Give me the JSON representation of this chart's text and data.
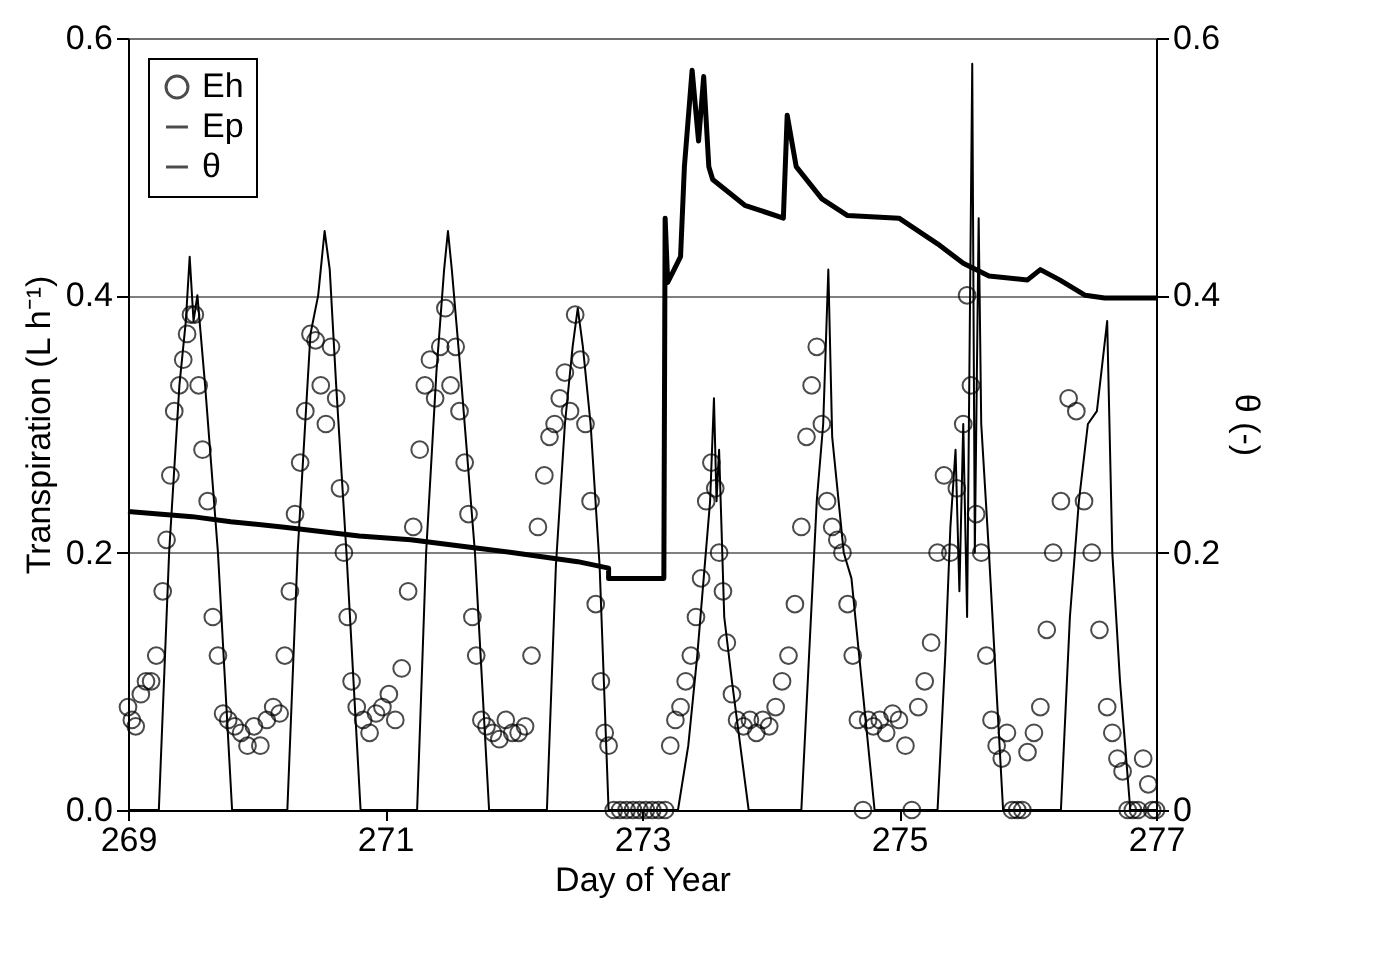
{
  "chart_data": {
    "type": "line",
    "xlabel": "Day of Year",
    "ylabel": "Transpiration (L h⁻¹)",
    "y2label": "θ (-)",
    "xlim": [
      269,
      277
    ],
    "xticks": [
      269,
      271,
      273,
      275,
      277
    ],
    "ylim": [
      0,
      0.6
    ],
    "yticks": [
      {
        "value": 0,
        "label": "0.0"
      },
      {
        "value": 0.2,
        "label": "0.2"
      },
      {
        "value": 0.4,
        "label": "0.4"
      },
      {
        "value": 0.6,
        "label": "0.6"
      }
    ],
    "y2lim": [
      0,
      0.6
    ],
    "y2ticks": [
      0,
      0.2,
      0.4,
      0.6
    ],
    "grid": "y",
    "legend": "top left",
    "series": [
      {
        "name": "Eh",
        "type": "scatter",
        "marker": "circle",
        "color": "#000000",
        "x": [
          269.0,
          269.03,
          269.06,
          269.1,
          269.14,
          269.18,
          269.22,
          269.27,
          269.3,
          269.33,
          269.36,
          269.4,
          269.43,
          269.46,
          269.49,
          269.52,
          269.55,
          269.58,
          269.62,
          269.66,
          269.7,
          269.74,
          269.78,
          269.83,
          269.88,
          269.93,
          269.98,
          270.03,
          270.08,
          270.13,
          270.18,
          270.22,
          270.26,
          270.3,
          270.34,
          270.38,
          270.42,
          270.46,
          270.5,
          270.54,
          270.58,
          270.62,
          270.65,
          270.68,
          270.71,
          270.74,
          270.78,
          270.83,
          270.88,
          270.93,
          270.98,
          271.03,
          271.08,
          271.13,
          271.18,
          271.22,
          271.27,
          271.31,
          271.35,
          271.39,
          271.43,
          271.47,
          271.51,
          271.55,
          271.58,
          271.62,
          271.65,
          271.68,
          271.71,
          271.75,
          271.79,
          271.84,
          271.89,
          271.94,
          271.99,
          272.04,
          272.09,
          272.14,
          272.19,
          272.24,
          272.28,
          272.32,
          272.36,
          272.4,
          272.44,
          272.48,
          272.52,
          272.56,
          272.6,
          272.64,
          272.68,
          272.71,
          272.74,
          272.78,
          272.83,
          272.88,
          272.93,
          272.98,
          273.03,
          273.08,
          273.13,
          273.18,
          273.22,
          273.26,
          273.3,
          273.34,
          273.38,
          273.42,
          273.46,
          273.5,
          273.54,
          273.57,
          273.6,
          273.63,
          273.66,
          273.7,
          273.74,
          273.79,
          273.84,
          273.89,
          273.94,
          273.99,
          274.04,
          274.09,
          274.14,
          274.19,
          274.24,
          274.28,
          274.32,
          274.36,
          274.4,
          274.44,
          274.48,
          274.52,
          274.56,
          274.6,
          274.64,
          274.68,
          274.72,
          274.76,
          274.8,
          274.85,
          274.9,
          274.95,
          275.0,
          275.05,
          275.1,
          275.15,
          275.2,
          275.25,
          275.3,
          275.35,
          275.4,
          275.45,
          275.5,
          275.53,
          275.56,
          275.6,
          275.64,
          275.68,
          275.72,
          275.76,
          275.8,
          275.84,
          275.88,
          275.92,
          275.96,
          276.0,
          276.05,
          276.1,
          276.15,
          276.2,
          276.26,
          276.32,
          276.38,
          276.44,
          276.5,
          276.56,
          276.62,
          276.66,
          276.7,
          276.74,
          276.78,
          276.82,
          276.86,
          276.9,
          276.94,
          276.97,
          277.0
        ],
        "values": [
          0.08,
          0.07,
          0.065,
          0.09,
          0.1,
          0.1,
          0.12,
          0.17,
          0.21,
          0.26,
          0.31,
          0.33,
          0.35,
          0.37,
          0.385,
          0.385,
          0.33,
          0.28,
          0.24,
          0.15,
          0.12,
          0.075,
          0.07,
          0.065,
          0.06,
          0.05,
          0.065,
          0.05,
          0.07,
          0.08,
          0.075,
          0.12,
          0.17,
          0.23,
          0.27,
          0.31,
          0.37,
          0.365,
          0.33,
          0.3,
          0.36,
          0.32,
          0.25,
          0.2,
          0.15,
          0.1,
          0.08,
          0.07,
          0.06,
          0.075,
          0.08,
          0.09,
          0.07,
          0.11,
          0.17,
          0.22,
          0.28,
          0.33,
          0.35,
          0.32,
          0.36,
          0.39,
          0.33,
          0.36,
          0.31,
          0.27,
          0.23,
          0.15,
          0.12,
          0.07,
          0.065,
          0.06,
          0.055,
          0.07,
          0.06,
          0.06,
          0.065,
          0.12,
          0.22,
          0.26,
          0.29,
          0.3,
          0.32,
          0.34,
          0.31,
          0.385,
          0.35,
          0.3,
          0.24,
          0.16,
          0.1,
          0.06,
          0.05,
          0,
          0,
          0,
          0,
          0,
          0,
          0,
          0,
          0,
          0.05,
          0.07,
          0.08,
          0.1,
          0.12,
          0.15,
          0.18,
          0.24,
          0.27,
          0.25,
          0.2,
          0.17,
          0.13,
          0.09,
          0.07,
          0.065,
          0.07,
          0.06,
          0.07,
          0.065,
          0.08,
          0.1,
          0.12,
          0.16,
          0.22,
          0.29,
          0.33,
          0.36,
          0.3,
          0.24,
          0.22,
          0.21,
          0.2,
          0.16,
          0.12,
          0.07,
          0,
          0.07,
          0.065,
          0.07,
          0.06,
          0.075,
          0.07,
          0.05,
          0,
          0.08,
          0.1,
          0.13,
          0.2,
          0.26,
          0.2,
          0.25,
          0.3,
          0.4,
          0.33,
          0.23,
          0.2,
          0.12,
          0.07,
          0.05,
          0.04,
          0.06,
          0,
          0,
          0,
          0.045,
          0.06,
          0.08,
          0.14,
          0.2,
          0.24,
          0.32,
          0.31,
          0.24,
          0.2,
          0.14,
          0.08,
          0.06,
          0.04,
          0.03,
          0,
          0,
          0,
          0.04,
          0.02,
          0,
          0
        ]
      },
      {
        "name": "Ep",
        "color": "#000000",
        "x": [
          269,
          269.24,
          269.32,
          269.4,
          269.45,
          269.48,
          269.51,
          269.54,
          269.6,
          269.7,
          269.81,
          270.24,
          270.32,
          270.42,
          270.48,
          270.53,
          270.57,
          270.62,
          270.7,
          270.81,
          271.25,
          271.32,
          271.4,
          271.46,
          271.49,
          271.52,
          271.58,
          271.7,
          271.81,
          272.26,
          272.33,
          272.4,
          272.46,
          272.5,
          272.54,
          272.6,
          272.67,
          272.74,
          273.28,
          273.36,
          273.43,
          273.48,
          273.53,
          273.56,
          273.58,
          273.6,
          273.64,
          273.7,
          273.83,
          274.24,
          274.3,
          274.36,
          274.41,
          274.45,
          274.48,
          274.53,
          274.57,
          274.63,
          274.71,
          274.81,
          275.3,
          275.36,
          275.4,
          275.44,
          275.47,
          275.5,
          275.53,
          275.57,
          275.59,
          275.62,
          275.64,
          275.7,
          275.81,
          276.26,
          276.33,
          276.4,
          276.47,
          276.54,
          276.62,
          276.66,
          276.72,
          276.8,
          277
        ],
        "values": [
          0,
          0,
          0.2,
          0.33,
          0.38,
          0.43,
          0.38,
          0.4,
          0.33,
          0.2,
          0,
          0,
          0.2,
          0.37,
          0.4,
          0.45,
          0.42,
          0.33,
          0.2,
          0,
          0,
          0.2,
          0.34,
          0.42,
          0.45,
          0.42,
          0.35,
          0.2,
          0,
          0,
          0.19,
          0.3,
          0.36,
          0.39,
          0.36,
          0.3,
          0.19,
          0,
          0,
          0.05,
          0.12,
          0.18,
          0.24,
          0.32,
          0.24,
          0.28,
          0.15,
          0.1,
          0,
          0,
          0.12,
          0.24,
          0.3,
          0.42,
          0.29,
          0.24,
          0.2,
          0.18,
          0.1,
          0,
          0,
          0.12,
          0.22,
          0.28,
          0.17,
          0.3,
          0.15,
          0.58,
          0.2,
          0.46,
          0.3,
          0.2,
          0,
          0,
          0.15,
          0.24,
          0.3,
          0.31,
          0.38,
          0.2,
          0.1,
          0,
          0
        ]
      },
      {
        "name": "θ",
        "axis": "y2",
        "color": "#000000",
        "x": [
          269,
          269.5,
          269.8,
          270.2,
          270.8,
          271.2,
          271.6,
          272.0,
          272.5,
          272.74,
          272.74,
          273.17,
          273.18,
          273.2,
          273.25,
          273.3,
          273.33,
          273.39,
          273.44,
          273.48,
          273.52,
          273.55,
          273.8,
          274.1,
          274.13,
          274.2,
          274.4,
          274.6,
          275.0,
          275.3,
          275.5,
          275.7,
          276.0,
          276.1,
          276.25,
          276.45,
          276.6,
          277.0
        ],
        "values": [
          0.232,
          0.228,
          0.224,
          0.22,
          0.213,
          0.21,
          0.205,
          0.2,
          0.193,
          0.188,
          0.18,
          0.18,
          0.46,
          0.41,
          0.42,
          0.43,
          0.5,
          0.575,
          0.52,
          0.57,
          0.5,
          0.49,
          0.47,
          0.46,
          0.54,
          0.5,
          0.475,
          0.462,
          0.46,
          0.44,
          0.425,
          0.415,
          0.412,
          0.42,
          0.412,
          0.4,
          0.398,
          0.398
        ]
      }
    ]
  }
}
